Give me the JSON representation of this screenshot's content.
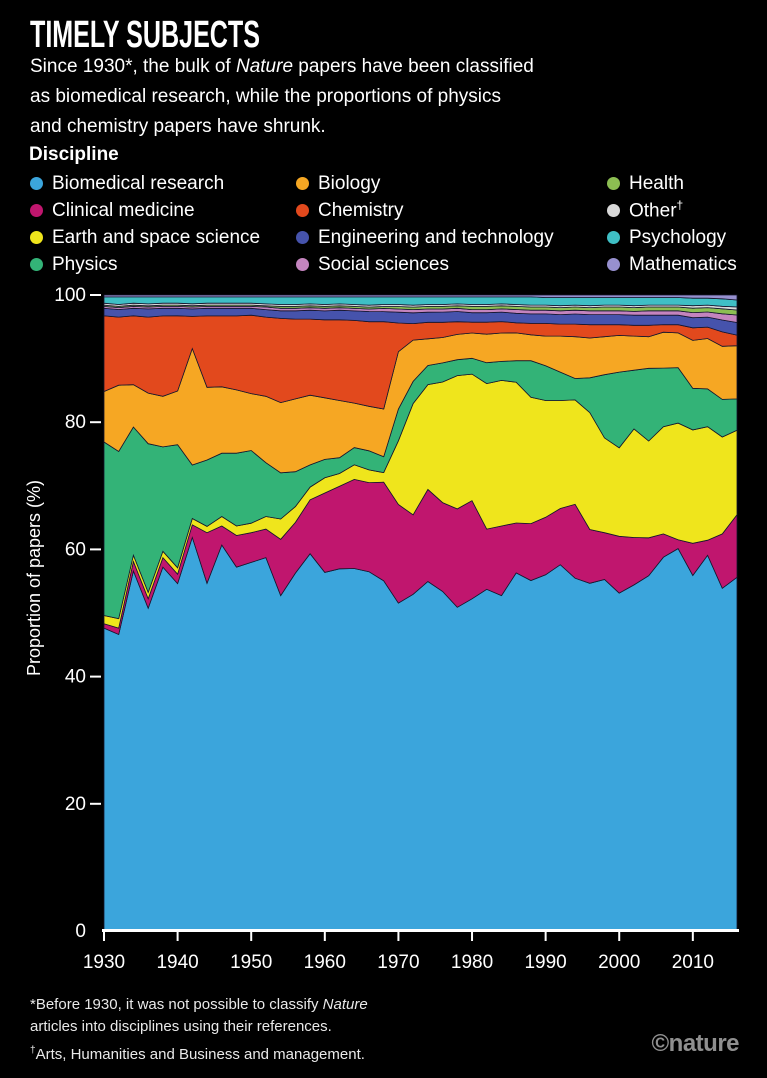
{
  "header": {
    "title": "TIMELY SUBJECTS",
    "subtitle_l1_pre": "Since 1930*, the bulk of ",
    "subtitle_l1_italic": "Nature",
    "subtitle_l1_post": " papers have been classified",
    "subtitle_l2": "as biomedical research, while the proportions of physics",
    "subtitle_l3": "and chemistry papers have shrunk."
  },
  "legend": {
    "title": "Discipline",
    "items": [
      {
        "label": "Biomedical research",
        "sup": "",
        "color": "#3BA5DC"
      },
      {
        "label": "Clinical medicine",
        "sup": "",
        "color": "#C0166E"
      },
      {
        "label": "Earth and space science",
        "sup": "",
        "color": "#EFE51C"
      },
      {
        "label": "Physics",
        "sup": "",
        "color": "#33B377"
      },
      {
        "label": "Biology",
        "sup": "",
        "color": "#F6A723"
      },
      {
        "label": "Chemistry",
        "sup": "",
        "color": "#E2491D"
      },
      {
        "label": "Engineering and technology",
        "sup": "",
        "color": "#4653AC"
      },
      {
        "label": "Social sciences",
        "sup": "",
        "color": "#C484BE"
      },
      {
        "label": "Health",
        "sup": "",
        "color": "#8CBE52"
      },
      {
        "label": "Other",
        "sup": "†",
        "color": "#D8D8D8"
      },
      {
        "label": "Psychology",
        "sup": "",
        "color": "#3FBFC5"
      },
      {
        "label": "Mathematics",
        "sup": "",
        "color": "#9790CF"
      }
    ]
  },
  "chart_data": {
    "type": "area",
    "stacked": true,
    "normalized_to_100": true,
    "title": "",
    "xlabel": "",
    "ylabel": "Proportion of papers (%)",
    "ylim": [
      0,
      100
    ],
    "xlim": [
      1930,
      2016
    ],
    "grid": false,
    "legend_position": "top",
    "outline_color": "#16162e",
    "axis_color": "#ffffff",
    "x_ticks": [
      1930,
      1940,
      1950,
      1960,
      1970,
      1980,
      1990,
      2000,
      2010
    ],
    "y_ticks": [
      0,
      20,
      40,
      60,
      80,
      100
    ],
    "x": [
      1930,
      1932,
      1934,
      1936,
      1938,
      1940,
      1942,
      1944,
      1946,
      1948,
      1950,
      1952,
      1954,
      1956,
      1958,
      1960,
      1962,
      1964,
      1966,
      1968,
      1970,
      1972,
      1974,
      1976,
      1978,
      1980,
      1982,
      1984,
      1986,
      1988,
      1990,
      1992,
      1994,
      1996,
      1998,
      2000,
      2002,
      2004,
      2006,
      2008,
      2010,
      2012,
      2014,
      2016
    ],
    "series": [
      {
        "name": "Biomedical research",
        "color": "#3BA5DC",
        "values": [
          48,
          47,
          57,
          51,
          57.5,
          55,
          62.5,
          55,
          61,
          57.5,
          58.3,
          59,
          53,
          56.5,
          59.5,
          56.5,
          57,
          57,
          56.5,
          55,
          51.5,
          53,
          55,
          53.5,
          51,
          52.5,
          54,
          53,
          56.7,
          55.5,
          56.4,
          58,
          55.8,
          55,
          55.6,
          53.5,
          54.8,
          56.2,
          59.3,
          60.6,
          56.4,
          59.6,
          54.8,
          56.5
        ]
      },
      {
        "name": "Clinical medicine",
        "color": "#C0166E",
        "values": [
          0.7,
          1.0,
          1.5,
          1.5,
          1.5,
          1.5,
          2.0,
          8.0,
          3.0,
          5.0,
          4.7,
          4.5,
          8.9,
          8.0,
          8.5,
          12.5,
          13.0,
          14.0,
          14.0,
          15.5,
          15.5,
          12.5,
          14.5,
          14.0,
          15.5,
          15.5,
          9.5,
          11.0,
          7.9,
          9.0,
          9.1,
          8.9,
          11.7,
          8.5,
          7.4,
          9.0,
          7.5,
          6.0,
          3.7,
          1.4,
          5.1,
          2.4,
          8.7,
          10.0
        ]
      },
      {
        "name": "Earth and space science",
        "color": "#EFE51C",
        "values": [
          1.3,
          1.5,
          1.0,
          1.0,
          1.0,
          1.0,
          1.0,
          1.0,
          1.5,
          1.5,
          1.5,
          2.0,
          3.2,
          2.5,
          2.0,
          2.4,
          2.0,
          2.3,
          2.0,
          1.5,
          10.0,
          17.5,
          16.5,
          19.0,
          21.0,
          20.0,
          23.0,
          23.0,
          22.3,
          20.0,
          18.5,
          17.1,
          16.5,
          18.5,
          15.0,
          14.0,
          17.2,
          15.3,
          17.0,
          18.5,
          18.0,
          18.0,
          15.5,
          13.5
        ]
      },
      {
        "name": "Physics",
        "color": "#33B377",
        "values": [
          27.5,
          26.5,
          20.3,
          23.5,
          16.5,
          19.5,
          8.5,
          10.5,
          10.0,
          11.5,
          11.5,
          8.5,
          7.3,
          5.5,
          3.5,
          2.9,
          2.5,
          2.7,
          3.0,
          2.5,
          5.0,
          3.5,
          3.0,
          3.0,
          2.5,
          2.5,
          3.3,
          3.0,
          3.4,
          5.8,
          5.5,
          4.5,
          3.4,
          5.5,
          10.0,
          12.0,
          9.3,
          11.5,
          9.3,
          8.8,
          6.6,
          6.0,
          6.0,
          5.0
        ]
      },
      {
        "name": "Biology",
        "color": "#F6A723",
        "values": [
          8.0,
          10.5,
          6.7,
          8.0,
          8.0,
          8.5,
          18.5,
          11.5,
          10.5,
          10.0,
          9.0,
          10.5,
          11.1,
          11.5,
          11.0,
          9.7,
          9.0,
          7.0,
          7.0,
          7.5,
          9.0,
          6.5,
          4.2,
          4.0,
          4.0,
          4.0,
          4.5,
          4.5,
          4.4,
          4.1,
          4.7,
          5.7,
          6.6,
          6.3,
          6.0,
          5.8,
          5.4,
          5.0,
          5.7,
          5.5,
          7.6,
          8.0,
          8.5,
          8.5
        ]
      },
      {
        "name": "Chemistry",
        "color": "#E2491D",
        "values": [
          12.0,
          10.8,
          10.9,
          12.0,
          12.7,
          11.9,
          5.1,
          11.3,
          11.2,
          11.7,
          12.4,
          12.5,
          13.3,
          12.6,
          12.0,
          12.3,
          12.7,
          13.0,
          13.3,
          13.7,
          4.5,
          2.6,
          2.6,
          2.4,
          2.0,
          1.7,
          1.9,
          1.8,
          1.6,
          1.8,
          2.0,
          1.9,
          2.0,
          2.1,
          1.9,
          1.7,
          1.7,
          1.8,
          1.2,
          1.3,
          2.0,
          1.8,
          2.3,
          1.7
        ]
      },
      {
        "name": "Engineering and technology",
        "color": "#4653AC",
        "values": [
          1.2,
          1.2,
          1.2,
          1.3,
          1.2,
          1.2,
          1.2,
          1.2,
          1.2,
          1.2,
          1.1,
          1.2,
          1.2,
          1.3,
          1.4,
          1.4,
          1.5,
          1.5,
          1.6,
          1.6,
          1.7,
          1.7,
          1.6,
          1.6,
          1.6,
          1.5,
          1.5,
          1.5,
          1.5,
          1.5,
          1.5,
          1.5,
          1.6,
          1.6,
          1.6,
          1.6,
          1.6,
          1.6,
          1.5,
          1.5,
          1.6,
          1.6,
          1.9,
          2.0
        ]
      },
      {
        "name": "Social sciences",
        "color": "#C484BE",
        "values": [
          0.3,
          0.3,
          0.3,
          0.3,
          0.3,
          0.3,
          0.3,
          0.3,
          0.3,
          0.3,
          0.3,
          0.4,
          0.4,
          0.4,
          0.4,
          0.4,
          0.4,
          0.4,
          0.4,
          0.5,
          0.5,
          0.5,
          0.5,
          0.5,
          0.5,
          0.5,
          0.5,
          0.5,
          0.6,
          0.6,
          0.6,
          0.6,
          0.6,
          0.6,
          0.6,
          0.6,
          0.6,
          0.7,
          0.7,
          0.7,
          0.8,
          0.8,
          1.0,
          1.2
        ]
      },
      {
        "name": "Health",
        "color": "#8CBE52",
        "values": [
          0.2,
          0.2,
          0.2,
          0.2,
          0.2,
          0.2,
          0.2,
          0.2,
          0.2,
          0.2,
          0.2,
          0.2,
          0.3,
          0.3,
          0.3,
          0.3,
          0.3,
          0.3,
          0.3,
          0.3,
          0.4,
          0.4,
          0.4,
          0.4,
          0.4,
          0.5,
          0.5,
          0.5,
          0.5,
          0.5,
          0.5,
          0.5,
          0.5,
          0.5,
          0.6,
          0.6,
          0.6,
          0.6,
          0.6,
          0.6,
          0.7,
          0.7,
          0.8,
          0.8
        ]
      },
      {
        "name": "Other",
        "color": "#D8D8D8",
        "values": [
          0.3,
          0.3,
          0.3,
          0.3,
          0.3,
          0.3,
          0.3,
          0.3,
          0.3,
          0.3,
          0.3,
          0.3,
          0.3,
          0.3,
          0.3,
          0.3,
          0.3,
          0.3,
          0.3,
          0.3,
          0.3,
          0.3,
          0.3,
          0.3,
          0.3,
          0.3,
          0.3,
          0.3,
          0.3,
          0.3,
          0.3,
          0.3,
          0.3,
          0.3,
          0.3,
          0.3,
          0.3,
          0.3,
          0.3,
          0.3,
          0.4,
          0.4,
          0.4,
          0.5
        ]
      },
      {
        "name": "Psychology",
        "color": "#3FBFC5",
        "values": [
          1.0,
          1.2,
          1.0,
          1.1,
          1.0,
          1.0,
          1.1,
          1.0,
          1.0,
          1.0,
          1.0,
          1.1,
          1.2,
          1.2,
          1.1,
          1.2,
          1.1,
          1.2,
          1.3,
          1.2,
          1.2,
          1.3,
          1.2,
          1.2,
          1.1,
          1.2,
          1.2,
          1.1,
          1.2,
          1.3,
          1.2,
          1.3,
          1.2,
          1.3,
          1.2,
          1.2,
          1.3,
          1.2,
          1.2,
          1.2,
          1.2,
          1.1,
          1.2,
          1.1
        ]
      },
      {
        "name": "Mathematics",
        "color": "#9790CF",
        "values": [
          0.3,
          0.3,
          0.3,
          0.3,
          0.3,
          0.3,
          0.3,
          0.3,
          0.3,
          0.3,
          0.3,
          0.3,
          0.3,
          0.3,
          0.3,
          0.3,
          0.3,
          0.3,
          0.3,
          0.3,
          0.3,
          0.3,
          0.3,
          0.3,
          0.3,
          0.3,
          0.3,
          0.3,
          0.3,
          0.3,
          0.4,
          0.4,
          0.4,
          0.4,
          0.4,
          0.4,
          0.4,
          0.4,
          0.4,
          0.4,
          0.5,
          0.5,
          0.6,
          0.8
        ]
      }
    ]
  },
  "footnotes": {
    "f1_pre": "*Before 1930, it was not possible to classify ",
    "f1_italic": "Nature",
    "f1_line2": "articles into disciplines using their references.",
    "f2_sup": "†",
    "f2_text": "Arts, Humanities and Business and management."
  },
  "brand": {
    "logo": "©nature"
  }
}
